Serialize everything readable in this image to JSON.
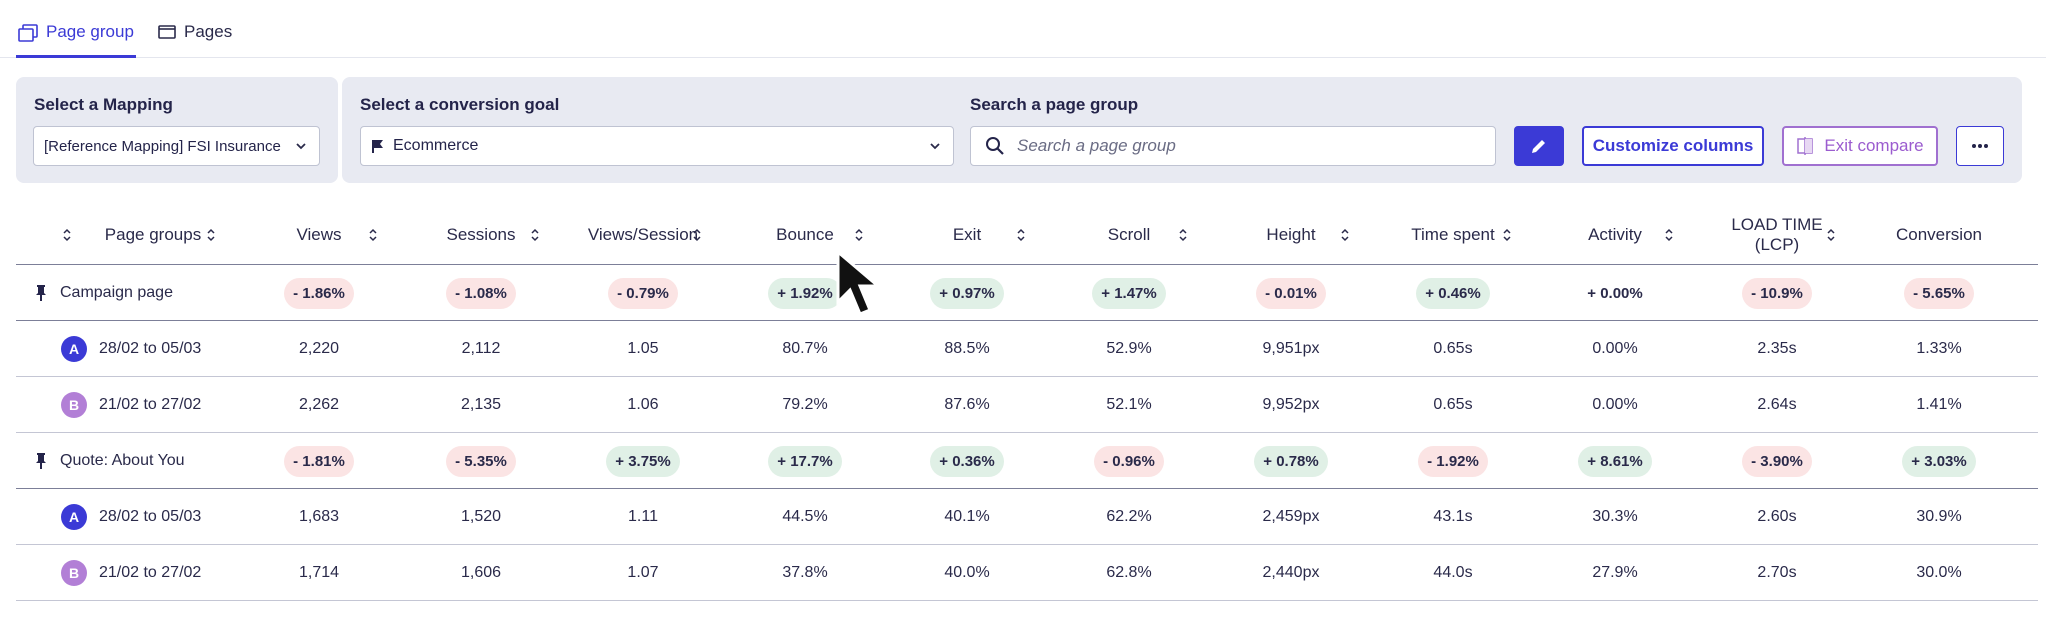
{
  "tabs": [
    {
      "label": "Page group",
      "active": true,
      "icon": "page-group-icon"
    },
    {
      "label": "Pages",
      "active": false,
      "icon": "pages-icon"
    }
  ],
  "filters": {
    "mapping_label": "Select a Mapping",
    "mapping_value": "[Reference Mapping] FSI Insurance",
    "goal_label": "Select a conversion goal",
    "goal_value": "Ecommerce",
    "search_label": "Search a page group",
    "search_placeholder": "Search a page group"
  },
  "toolbar": {
    "customize_label": "Customize columns",
    "exit_compare_label": "Exit compare"
  },
  "columns": [
    "Page groups",
    "Views",
    "Sessions",
    "Views/Session",
    "Bounce",
    "Exit",
    "Scroll",
    "Height",
    "Time spent",
    "Activity",
    "LOAD TIME (LCP)",
    "Conversion"
  ],
  "colors": {
    "accent": "#3b3ad6",
    "period_a": "#3b3ad6",
    "period_b": "#b27fd6",
    "negative_bg": "#fbe4e4",
    "positive_bg": "#e0f0e6"
  },
  "rows": [
    {
      "type": "group",
      "label": "Campaign page",
      "cells": [
        [
          "- 1.86%",
          "neg"
        ],
        [
          "- 1.08%",
          "neg"
        ],
        [
          "- 0.79%",
          "neg"
        ],
        [
          "+ 1.92%",
          "pos"
        ],
        [
          "+ 0.97%",
          "pos"
        ],
        [
          "+ 1.47%",
          "pos"
        ],
        [
          "- 0.01%",
          "neg"
        ],
        [
          "+ 0.46%",
          "pos"
        ],
        [
          "+ 0.00%",
          "neu"
        ],
        [
          "- 10.9%",
          "neg"
        ],
        [
          "- 5.65%",
          "neg"
        ]
      ]
    },
    {
      "type": "period",
      "badge": "A",
      "label": "28/02 to 05/03",
      "cells": [
        [
          "2,220"
        ],
        [
          "2,112"
        ],
        [
          "1.05"
        ],
        [
          "80.7%"
        ],
        [
          "88.5%"
        ],
        [
          "52.9%"
        ],
        [
          "9,951px"
        ],
        [
          "0.65s"
        ],
        [
          "0.00%"
        ],
        [
          "2.35s"
        ],
        [
          "1.33%"
        ]
      ]
    },
    {
      "type": "period",
      "badge": "B",
      "label": "21/02 to 27/02",
      "cells": [
        [
          "2,262"
        ],
        [
          "2,135"
        ],
        [
          "1.06"
        ],
        [
          "79.2%"
        ],
        [
          "87.6%"
        ],
        [
          "52.1%"
        ],
        [
          "9,952px"
        ],
        [
          "0.65s"
        ],
        [
          "0.00%"
        ],
        [
          "2.64s"
        ],
        [
          "1.41%"
        ]
      ]
    },
    {
      "type": "group",
      "label": "Quote: About You",
      "cells": [
        [
          "- 1.81%",
          "neg"
        ],
        [
          "- 5.35%",
          "neg"
        ],
        [
          "+ 3.75%",
          "pos"
        ],
        [
          "+ 17.7%",
          "pos"
        ],
        [
          "+ 0.36%",
          "pos"
        ],
        [
          "- 0.96%",
          "neg"
        ],
        [
          "+ 0.78%",
          "pos"
        ],
        [
          "- 1.92%",
          "neg"
        ],
        [
          "+ 8.61%",
          "pos"
        ],
        [
          "- 3.90%",
          "neg"
        ],
        [
          "+ 3.03%",
          "pos"
        ]
      ]
    },
    {
      "type": "period",
      "badge": "A",
      "label": "28/02 to 05/03",
      "cells": [
        [
          "1,683"
        ],
        [
          "1,520"
        ],
        [
          "1.11"
        ],
        [
          "44.5%"
        ],
        [
          "40.1%"
        ],
        [
          "62.2%"
        ],
        [
          "2,459px"
        ],
        [
          "43.1s"
        ],
        [
          "30.3%"
        ],
        [
          "2.60s"
        ],
        [
          "30.9%"
        ]
      ]
    },
    {
      "type": "period",
      "badge": "B",
      "label": "21/02 to 27/02",
      "cells": [
        [
          "1,714"
        ],
        [
          "1,606"
        ],
        [
          "1.07"
        ],
        [
          "37.8%"
        ],
        [
          "40.0%"
        ],
        [
          "62.8%"
        ],
        [
          "2,440px"
        ],
        [
          "44.0s"
        ],
        [
          "27.9%"
        ],
        [
          "2.70s"
        ],
        [
          "30.0%"
        ]
      ]
    }
  ]
}
